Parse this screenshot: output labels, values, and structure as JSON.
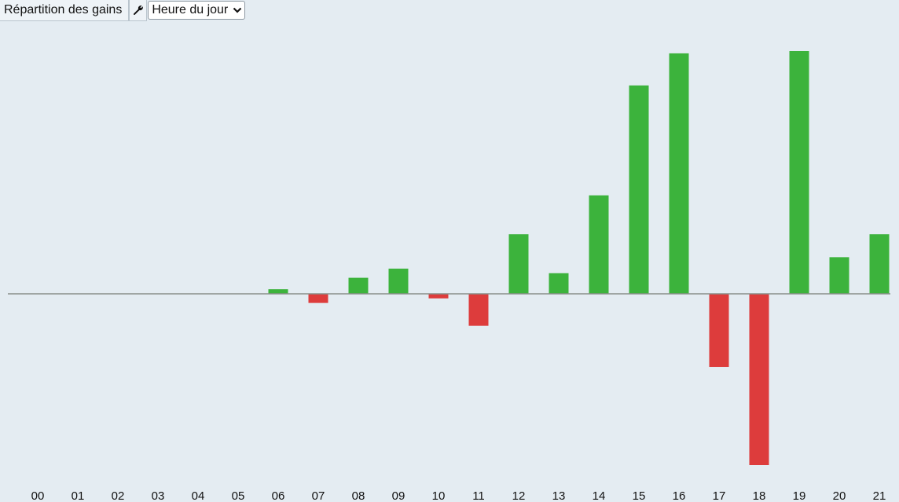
{
  "toolbar": {
    "title": "Répartition des gains",
    "tool_icon": "wrench-icon",
    "select_value": "Heure du jour",
    "select_icon": "chevron-down-icon"
  },
  "colors": {
    "positive": "#3cb33c",
    "negative": "#dd3c3c",
    "baseline": "#8a8f8a",
    "background": "#e4ecf2"
  },
  "chart_data": {
    "type": "bar",
    "categories": [
      "00",
      "01",
      "02",
      "03",
      "04",
      "05",
      "06",
      "07",
      "08",
      "09",
      "10",
      "11",
      "12",
      "13",
      "14",
      "15",
      "16",
      "17",
      "18",
      "19",
      "20",
      "21"
    ],
    "values": [
      0,
      0,
      0,
      0,
      0,
      0,
      2,
      -4,
      7,
      11,
      -2,
      -14,
      26,
      9,
      43,
      91,
      105,
      -32,
      -75,
      106,
      16,
      26
    ],
    "ylim": [
      -75,
      106
    ],
    "grid": false,
    "xlabel": "",
    "ylabel": "",
    "title": ""
  }
}
